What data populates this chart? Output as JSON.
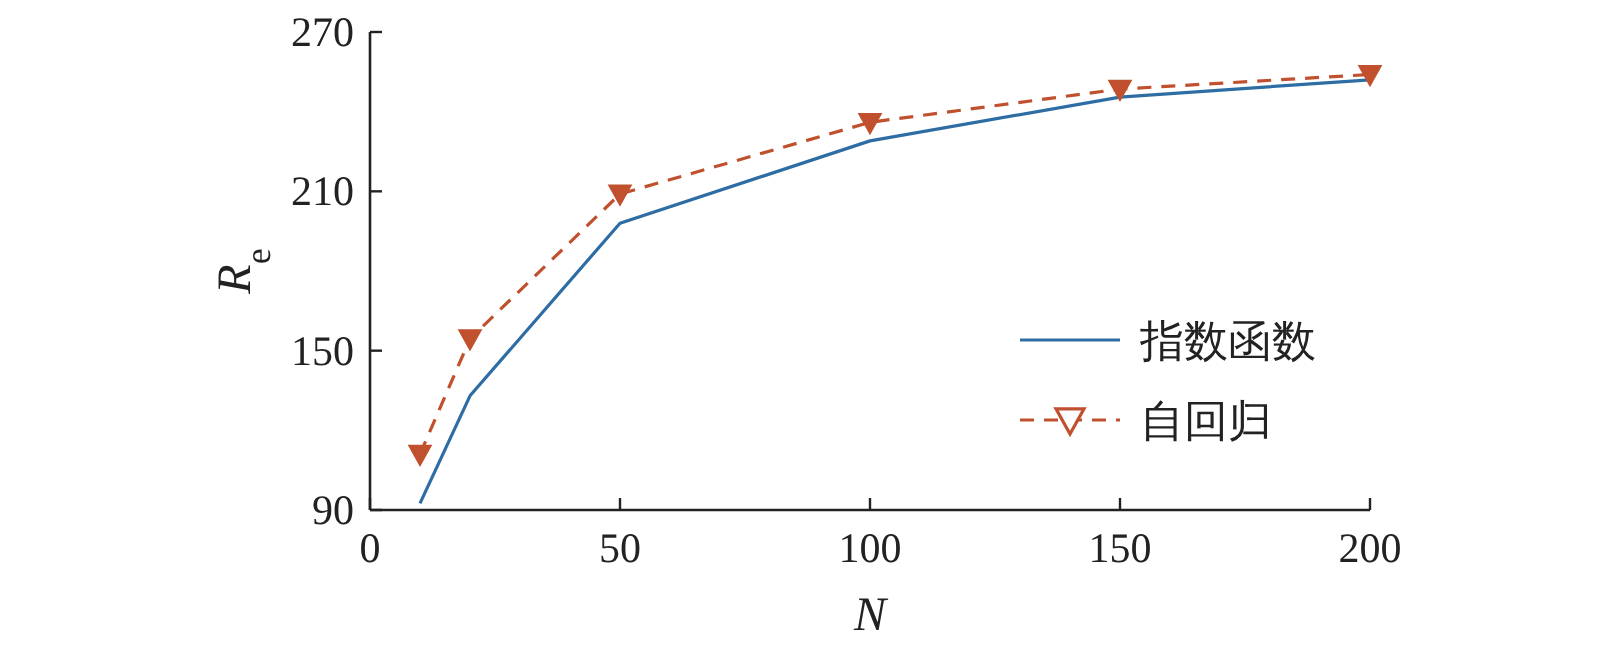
{
  "chart_data": {
    "type": "line",
    "xlabel": "N",
    "ylabel": "R$_{e}$",
    "x": [
      10,
      20,
      50,
      100,
      150,
      200
    ],
    "series": [
      {
        "name": "指数函数",
        "color": "#2e6da4",
        "values": [
          92.5,
          133,
          198,
          229,
          245.5,
          252
        ],
        "line_style": "solid",
        "marker": "none"
      },
      {
        "name": "自回归",
        "color": "#c0502e",
        "values": [
          111,
          154.5,
          209,
          236,
          248.5,
          254
        ],
        "line_style": "dashed",
        "marker": "triangle"
      }
    ],
    "xlim": [
      0,
      200
    ],
    "xticks": [
      0,
      50,
      100,
      150,
      200
    ],
    "ylim": [
      90,
      270
    ],
    "yticks": [
      90,
      150,
      210,
      270
    ],
    "grid": false,
    "legend": "bottom right"
  }
}
